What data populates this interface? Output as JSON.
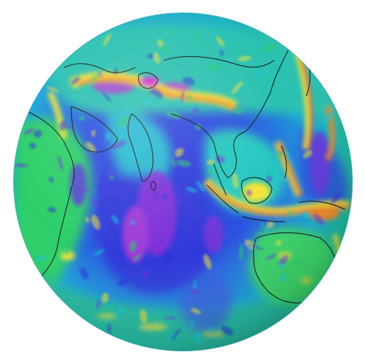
{
  "image": {
    "subject": "gravity-anomaly-globe",
    "colors": {
      "background": "#ffffff",
      "ocean_low": "#2a2fd6",
      "ocean_mid": "#1f6fe0",
      "mid_cyan": "#19c7d9",
      "mid_green": "#2fcf6a",
      "high_yellow": "#f2e437",
      "peak_orange": "#f08a2b",
      "peak_red": "#e0303a",
      "peak_magenta": "#d62fd0",
      "coastline": "#101010"
    }
  }
}
